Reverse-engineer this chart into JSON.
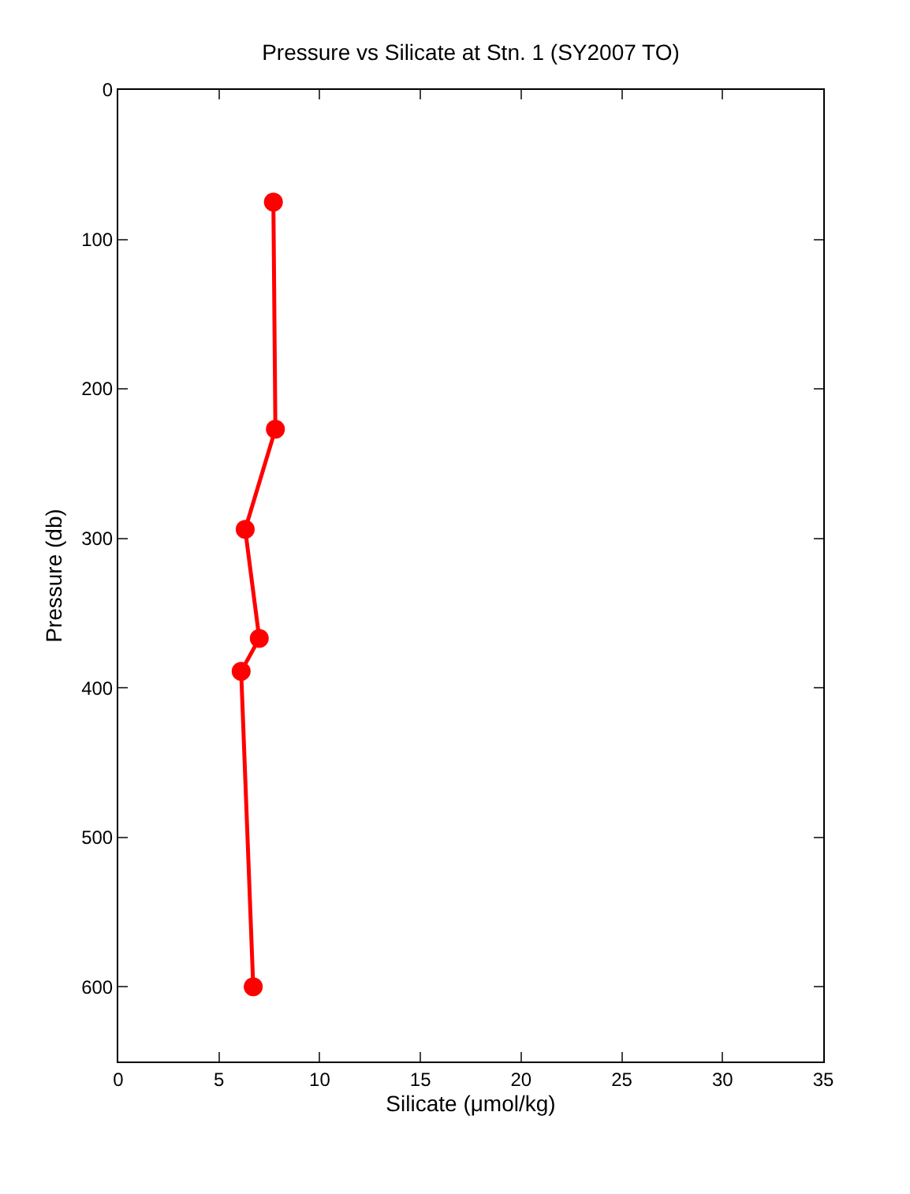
{
  "chart_data": {
    "type": "line",
    "title": "Pressure vs Silicate at Stn. 1 (SY2007 TO)",
    "xlabel": "Silicate (μmol/kg)",
    "ylabel": "Pressure (db)",
    "x": [
      7.7,
      7.8,
      6.3,
      7.0,
      6.1,
      6.7
    ],
    "series": [
      {
        "color": "#ff0000",
        "values": [
          75,
          227,
          294,
          367,
          389,
          600
        ]
      }
    ],
    "xlim": [
      0,
      35
    ],
    "xticks": [
      0,
      5,
      10,
      15,
      20,
      25,
      30,
      35
    ],
    "ylim": [
      650,
      0
    ],
    "yticks": [
      0,
      100,
      200,
      300,
      400,
      500,
      600
    ],
    "grid": false,
    "marker": "circle",
    "line_style": "solid"
  }
}
